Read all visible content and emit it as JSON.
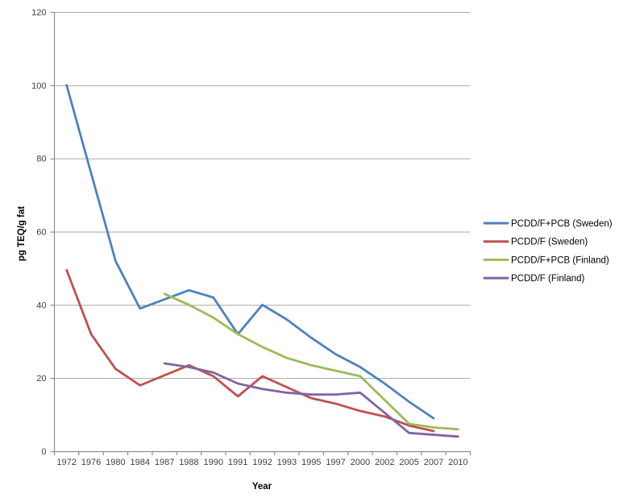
{
  "chart_data": {
    "type": "line",
    "title": "",
    "xlabel": "Year",
    "ylabel": "pg TEQ/g fat",
    "categories": [
      "1972",
      "1976",
      "1980",
      "1984",
      "1987",
      "1988",
      "1990",
      "1991",
      "1992",
      "1993",
      "1995",
      "1997",
      "2000",
      "2002",
      "2005",
      "2007",
      "2010"
    ],
    "y_ticks": [
      0,
      20,
      40,
      60,
      80,
      100,
      120
    ],
    "ylim": [
      0,
      120
    ],
    "grid": "horizontal-major-gridlines",
    "legend_position": "right",
    "colors": {
      "gridline": "#a6a6a6",
      "axis": "#8e8e8e",
      "tick_text": "#404040"
    },
    "series": [
      {
        "name": "PCDD/F+PCB (Sweden)",
        "color": "#4F81BD",
        "values": [
          100,
          76,
          52,
          39,
          null,
          44,
          42,
          32,
          40,
          36,
          31,
          26.5,
          23,
          18.5,
          13.5,
          9,
          null
        ]
      },
      {
        "name": "PCDD/F (Sweden)",
        "color": "#C0504D",
        "values": [
          49.5,
          32,
          22.5,
          18,
          null,
          23.5,
          20.5,
          15,
          20.5,
          17.5,
          14.5,
          13,
          11,
          9.5,
          7,
          5.5,
          null
        ]
      },
      {
        "name": "PCDD/F+PCB (Finland)",
        "color": "#9BBB59",
        "values": [
          null,
          null,
          null,
          null,
          43,
          40,
          36.5,
          32,
          28.5,
          25.5,
          23.5,
          22,
          20.5,
          14,
          7.5,
          6.5,
          6
        ]
      },
      {
        "name": "PCDD/F (Finland)",
        "color": "#8064A2",
        "values": [
          null,
          null,
          null,
          null,
          24,
          23,
          21.5,
          18.5,
          17,
          16,
          15.5,
          15.5,
          16,
          10.5,
          5,
          4.5,
          4
        ]
      }
    ]
  }
}
